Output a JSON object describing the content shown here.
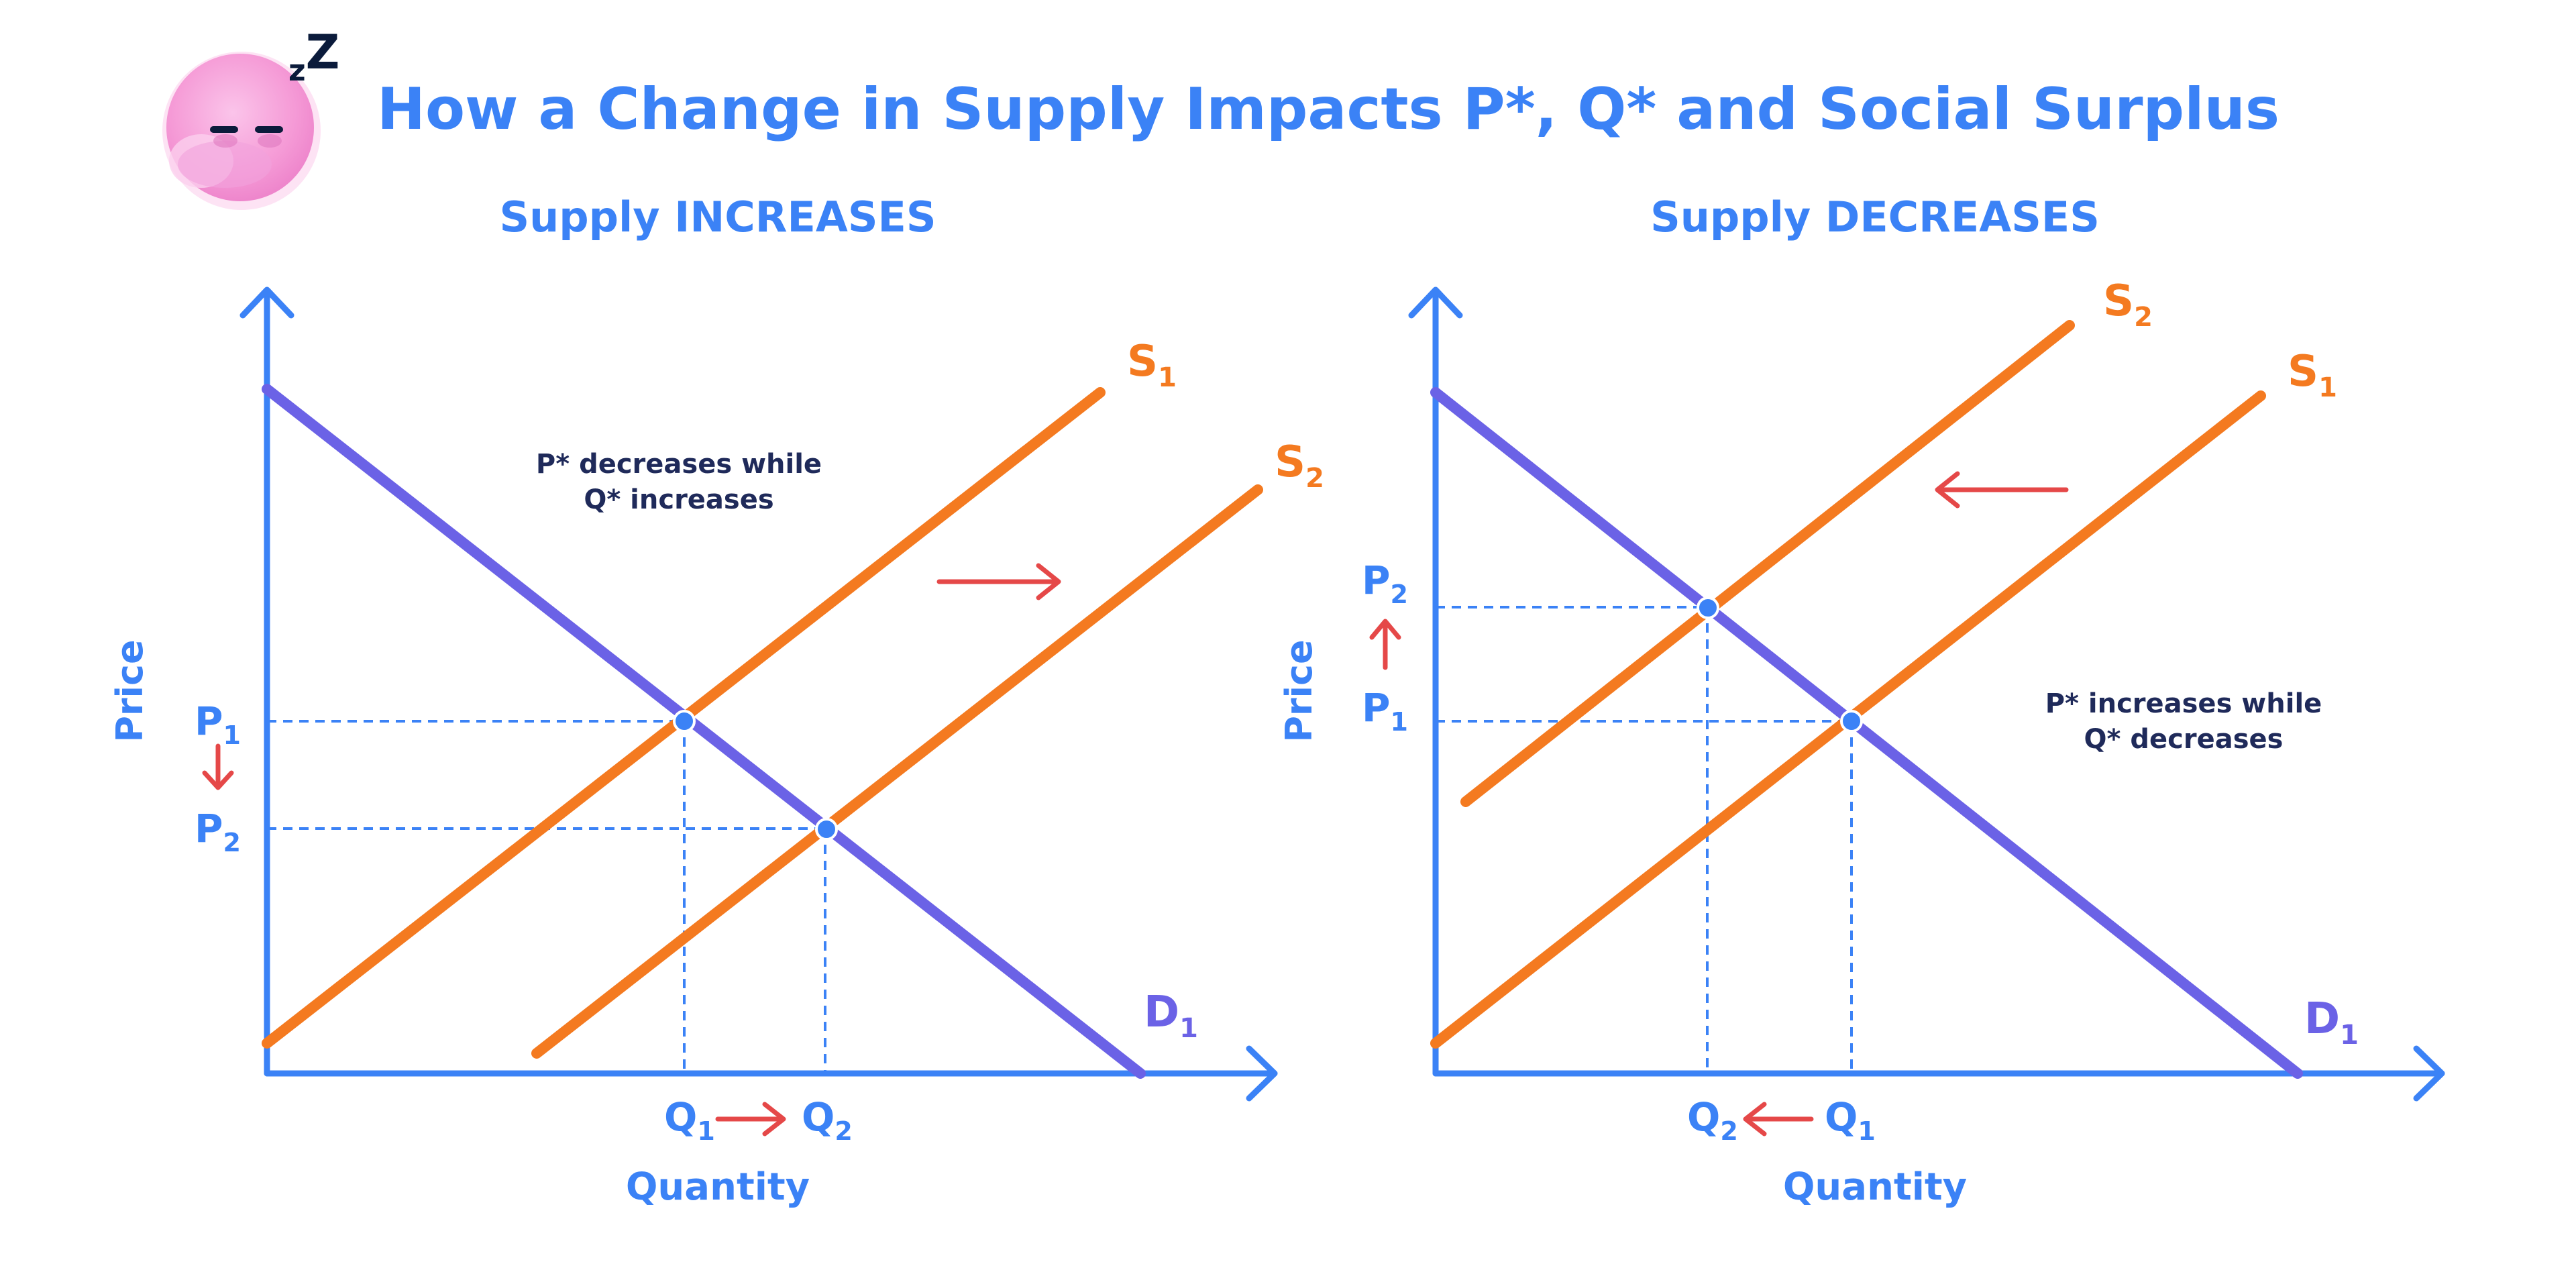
{
  "title": "How a Change in Supply Impacts P*, Q* and Social Surplus",
  "colors": {
    "axis": "#3b82f6",
    "text_blue": "#3b82f6",
    "supply": "#f47a20",
    "demand": "#6b62e6",
    "arrow": "#e54848",
    "annotation": "#1f2a5a",
    "point": "#3b82f6",
    "mascot": "#f59ad6",
    "mascot_light": "#fbd0ee",
    "mascot_outline": "#0b1b3b"
  },
  "mascot": {
    "icon": "sleeping-blob-icon",
    "zzz": "zZ"
  },
  "left_panel": {
    "subtitle": "Supply INCREASES",
    "ylabel": "Price",
    "xlabel": "Quantity",
    "curves": {
      "s1": {
        "main": "S",
        "sub": "1"
      },
      "s2": {
        "main": "S",
        "sub": "2"
      },
      "d1": {
        "main": "D",
        "sub": "1"
      }
    },
    "p_labels": [
      {
        "main": "P",
        "sub": "1"
      },
      {
        "main": "P",
        "sub": "2"
      }
    ],
    "q_labels": [
      {
        "main": "Q",
        "sub": "1"
      },
      {
        "main": "Q",
        "sub": "2"
      }
    ],
    "note": [
      "P* decreases while",
      "Q* increases"
    ]
  },
  "right_panel": {
    "subtitle": "Supply DECREASES",
    "ylabel": "Price",
    "xlabel": "Quantity",
    "curves": {
      "s1": {
        "main": "S",
        "sub": "1"
      },
      "s2": {
        "main": "S",
        "sub": "2"
      },
      "d1": {
        "main": "D",
        "sub": "1"
      }
    },
    "p_labels": [
      {
        "main": "P",
        "sub": "2"
      },
      {
        "main": "P",
        "sub": "1"
      }
    ],
    "q_labels": [
      {
        "main": "Q",
        "sub": "2"
      },
      {
        "main": "Q",
        "sub": "1"
      }
    ],
    "note": [
      "P* increases while",
      "Q* decreases"
    ]
  }
}
